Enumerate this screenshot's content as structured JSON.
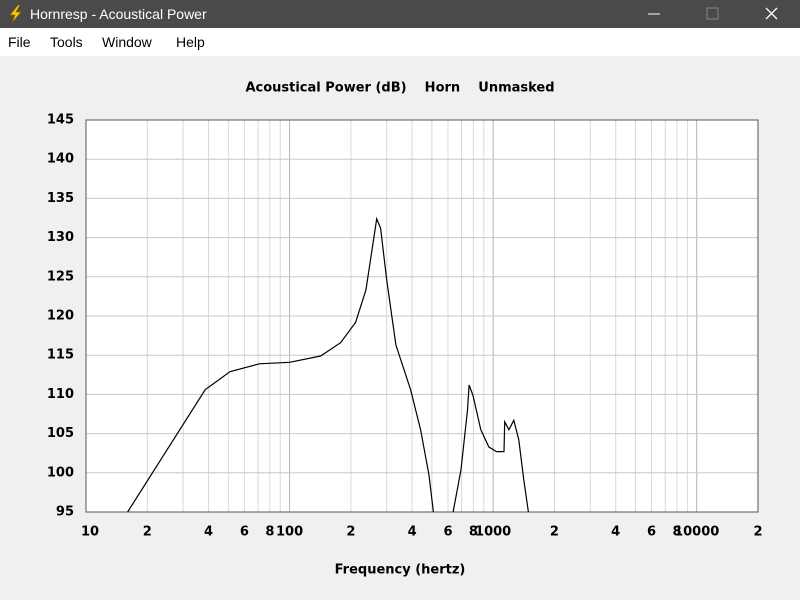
{
  "window": {
    "title": "Hornresp - Acoustical Power"
  },
  "menu": [
    "File",
    "Tools",
    "Window",
    "Help"
  ],
  "chart_data": {
    "type": "line",
    "title": "Acoustical Power (dB)    Horn    Unmasked",
    "x_label": "Frequency (hertz)",
    "log_x": true,
    "grid": true,
    "color": "#000000",
    "xlim": [
      10,
      20000
    ],
    "ylim": [
      95,
      145
    ],
    "xticks": [
      10,
      {
        "value": 20,
        "label": "2"
      },
      {
        "value": 40,
        "label": "4"
      },
      {
        "value": 60,
        "label": "6"
      },
      {
        "value": 80,
        "label": "8"
      },
      100,
      {
        "value": 200,
        "label": "2"
      },
      {
        "value": 400,
        "label": "4"
      },
      {
        "value": 600,
        "label": "6"
      },
      {
        "value": 800,
        "label": "8"
      },
      1000,
      {
        "value": 2000,
        "label": "2"
      },
      {
        "value": 4000,
        "label": "4"
      },
      {
        "value": 6000,
        "label": "6"
      },
      {
        "value": 8000,
        "label": "8"
      },
      10000,
      {
        "value": 20000,
        "label": "2"
      }
    ],
    "x_minor_ticks": [
      30,
      50,
      70,
      90,
      300,
      500,
      700,
      900,
      3000,
      5000,
      7000,
      9000
    ],
    "yticks": [
      95,
      100,
      105,
      110,
      115,
      120,
      125,
      130,
      135,
      140,
      145
    ],
    "x": [
      16,
      38.5,
      51,
      71,
      100,
      142,
      178,
      211,
      237,
      256,
      268,
      280,
      300,
      333,
      393,
      440,
      484,
      509,
      560,
      636,
      695,
      748,
      762,
      795,
      870,
      952,
      1037,
      1130,
      1140,
      1195,
      1263,
      1336,
      1414,
      1490
    ],
    "values": [
      95,
      110.6,
      112.9,
      113.9,
      114.1,
      114.9,
      116.6,
      119.2,
      123.3,
      129,
      132.4,
      131.2,
      124.6,
      116.3,
      110.6,
      105.5,
      99.7,
      95,
      null,
      95,
      100.4,
      108,
      111.2,
      109.9,
      105.5,
      103.3,
      102.7,
      102.7,
      106.5,
      105.5,
      106.7,
      104.2,
      99.1,
      95
    ]
  }
}
